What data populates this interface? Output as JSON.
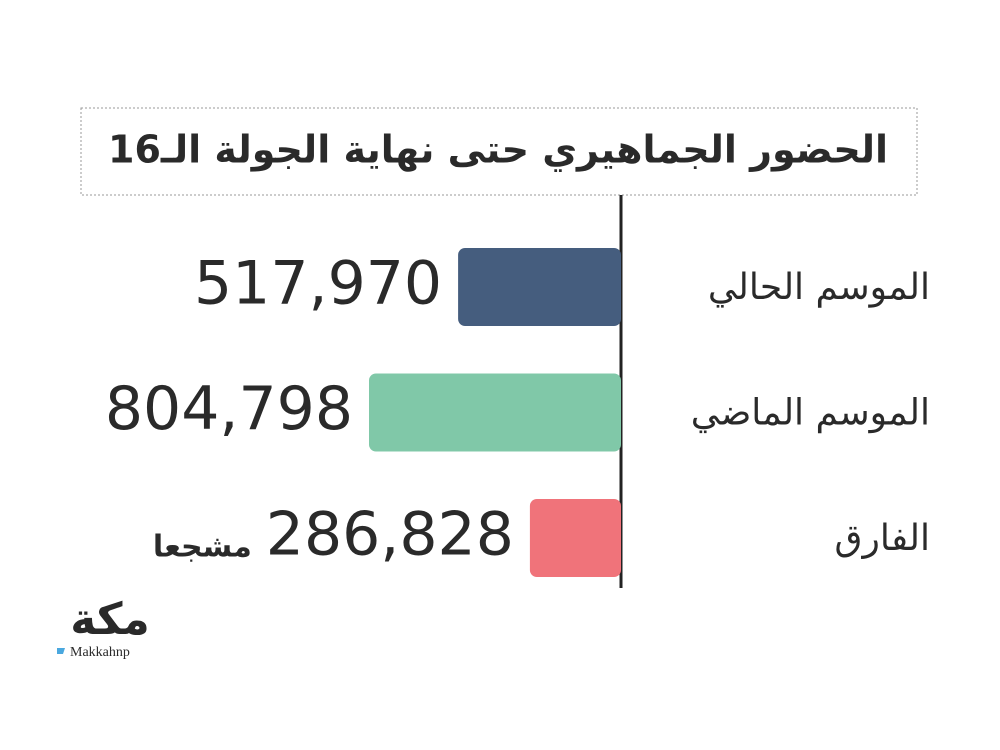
{
  "chart_data": {
    "type": "bar",
    "orientation": "horizontal",
    "title": "الحضور الجماهيري حتى نهاية الجولة الـ16",
    "categories": [
      "الموسم الحالي",
      "الموسم الماضي",
      "الفارق"
    ],
    "values": [
      517970,
      804798,
      286828
    ],
    "value_labels": [
      "517,970",
      "804,798",
      "286,828"
    ],
    "colors": [
      "#455d7e",
      "#80c8a8",
      "#f0737a"
    ],
    "annotation": "مشجعا"
  },
  "source": {
    "logo": "مكة",
    "handle": "Makkahnp"
  }
}
